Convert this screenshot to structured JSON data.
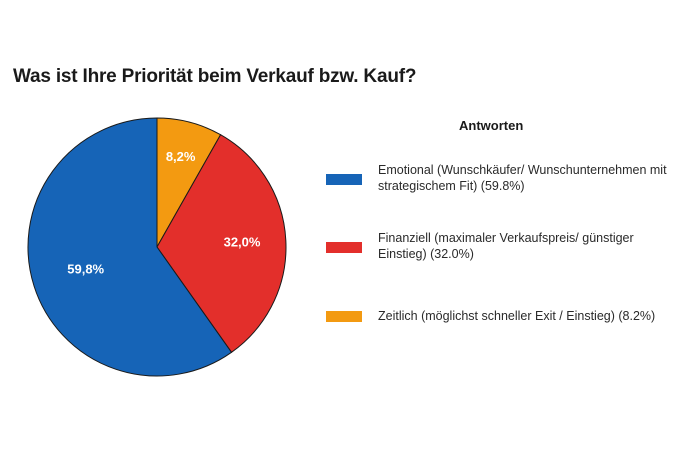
{
  "chart_data": {
    "type": "pie",
    "title": "Was ist Ihre Priorität beim Verkauf bzw. Kauf?",
    "legend_title": "Antworten",
    "legend_position": "right",
    "slices": [
      {
        "label": "Emotional (Wunschkäufer/ Wunschunternehmen mit strategischem Fit) (59.8%)",
        "value": 59.8,
        "data_label": "59,8%",
        "color": "#1664b7"
      },
      {
        "label": "Finanziell (maximaler Verkaufspreis/ günstiger Einstieg) (32.0%)",
        "value": 32.0,
        "data_label": "32,0%",
        "color": "#e32f2b"
      },
      {
        "label": "Zeitlich (möglichst schneller Exit / Einstieg) (8.2%)",
        "value": 8.2,
        "data_label": "8,2%",
        "color": "#f39a11"
      }
    ],
    "start_angle_deg": 0,
    "direction": "clockwise"
  }
}
